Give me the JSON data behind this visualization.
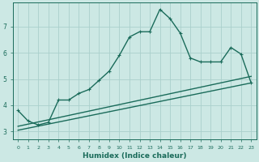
{
  "xlabel": "Humidex (Indice chaleur)",
  "ylabel": "",
  "background_color": "#cce8e4",
  "grid_color": "#aad0cc",
  "line_color": "#1a6b5a",
  "xlim": [
    -0.5,
    23.5
  ],
  "ylim": [
    2.7,
    7.9
  ],
  "xticks": [
    0,
    1,
    2,
    3,
    4,
    5,
    6,
    7,
    8,
    9,
    10,
    11,
    12,
    13,
    14,
    15,
    16,
    17,
    18,
    19,
    20,
    21,
    22,
    23
  ],
  "yticks": [
    3,
    4,
    5,
    6,
    7
  ],
  "main_x": [
    0,
    1,
    2,
    3,
    4,
    5,
    6,
    7,
    8,
    9,
    10,
    11,
    12,
    13,
    14,
    15,
    16,
    17,
    18,
    19,
    20,
    21,
    22,
    23
  ],
  "main_y": [
    3.8,
    3.4,
    3.25,
    3.35,
    4.2,
    4.2,
    4.45,
    4.6,
    4.95,
    5.3,
    5.9,
    6.6,
    6.8,
    6.8,
    7.65,
    7.3,
    6.75,
    5.8,
    5.65,
    5.65,
    5.65,
    6.2,
    5.95,
    4.85
  ],
  "line2_x": [
    0,
    23
  ],
  "line2_y": [
    3.2,
    5.1
  ],
  "line3_x": [
    0,
    23
  ],
  "line3_y": [
    3.05,
    4.85
  ],
  "marker_size": 2.5,
  "line_width": 1.0,
  "tick_fontsize": 5.5,
  "xlabel_fontsize": 6.5
}
